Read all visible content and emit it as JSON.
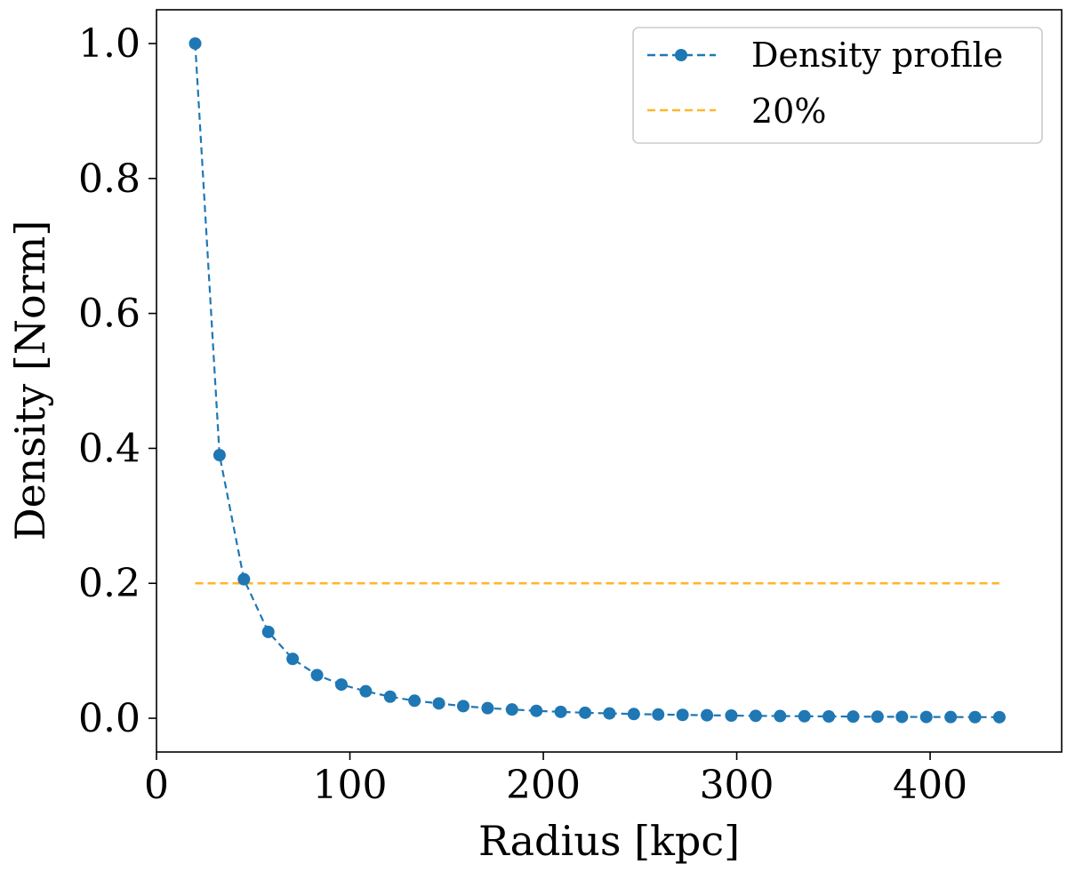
{
  "chart_data": {
    "type": "line",
    "xlabel": "Radius [kpc]",
    "ylabel": "Density [Norm]",
    "xlim": [
      0,
      468
    ],
    "ylim": [
      -0.05,
      1.05
    ],
    "xticks": [
      0,
      100,
      200,
      300,
      400
    ],
    "xtick_labels": [
      "0",
      "100",
      "200",
      "300",
      "400"
    ],
    "yticks": [
      0.0,
      0.2,
      0.4,
      0.6,
      0.8,
      1.0
    ],
    "ytick_labels": [
      "0.0",
      "0.2",
      "0.4",
      "0.6",
      "0.8",
      "1.0"
    ],
    "grid": false,
    "legend_position": "top-right",
    "series": [
      {
        "name": "Density profile",
        "style": "dashed line with circle markers",
        "color": "#1f77b4",
        "x": [
          20,
          32.6,
          45.2,
          57.8,
          70.4,
          83,
          95.6,
          108.2,
          120.8,
          133.4,
          146,
          158.6,
          171.2,
          183.8,
          196.4,
          209,
          221.6,
          234.2,
          246.8,
          259.4,
          272,
          284.6,
          297.2,
          309.8,
          322.4,
          335,
          347.6,
          360.2,
          372.8,
          385.4,
          398,
          410.6,
          423.2,
          435.8
        ],
        "y": [
          1.0,
          0.39,
          0.206,
          0.128,
          0.088,
          0.064,
          0.05,
          0.04,
          0.032,
          0.026,
          0.022,
          0.018,
          0.015,
          0.013,
          0.011,
          0.0095,
          0.0082,
          0.0072,
          0.0063,
          0.0056,
          0.005,
          0.0045,
          0.004,
          0.0036,
          0.0033,
          0.003,
          0.0027,
          0.0025,
          0.0023,
          0.0021,
          0.0019,
          0.0018,
          0.0017,
          0.0016
        ]
      },
      {
        "name": "20%",
        "style": "dashed line",
        "color": "#ffb62b",
        "x": [
          20,
          435.8
        ],
        "y": [
          0.2,
          0.2
        ]
      }
    ]
  }
}
